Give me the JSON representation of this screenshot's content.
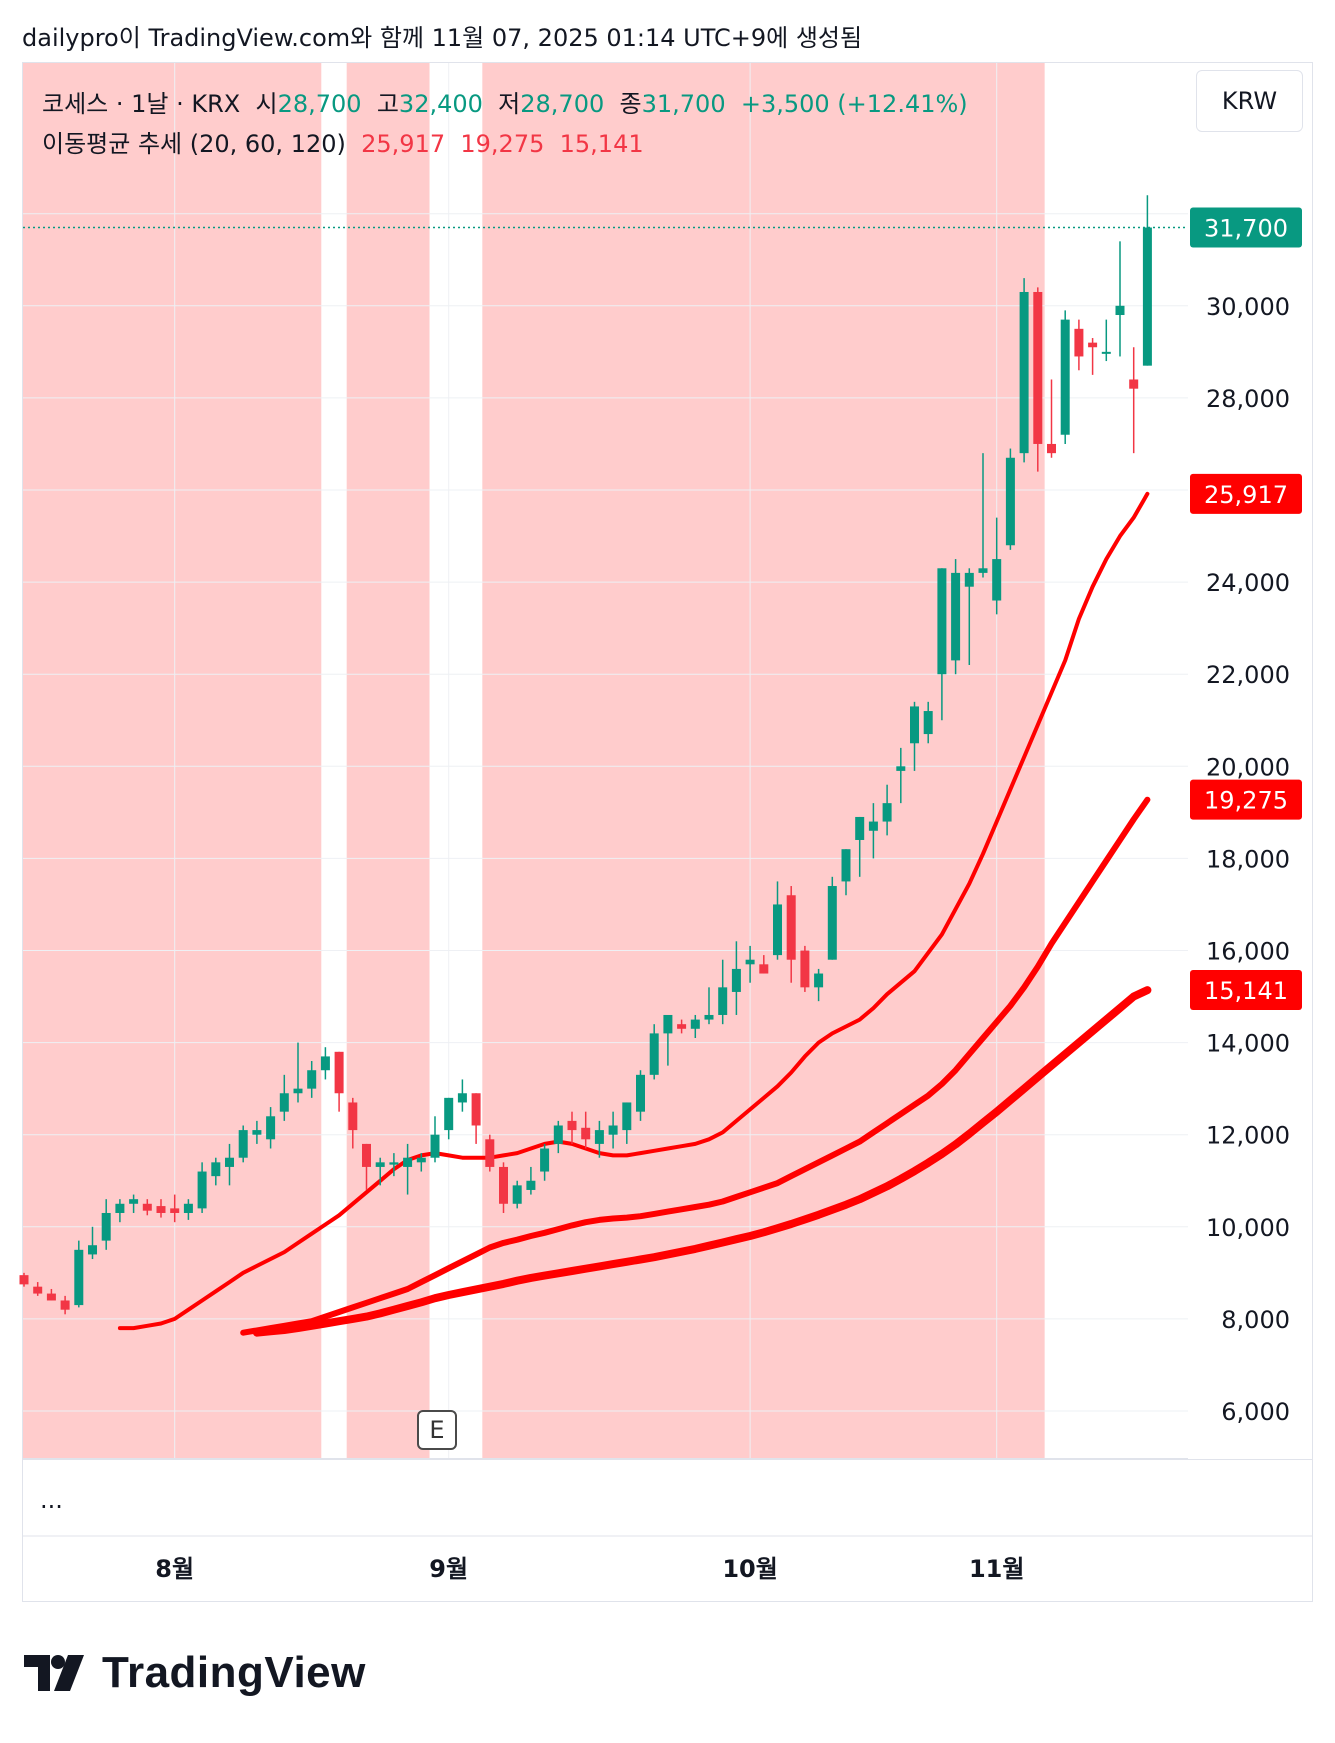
{
  "caption": "dailypro이 TradingView.com와 함께 11월 07, 2025 01:14 UTC+9에 생성됨",
  "legend": {
    "symbol": "코세스 · 1날 · KRX",
    "open_label": "시",
    "open": "28,700",
    "high_label": "고",
    "high": "32,400",
    "low_label": "저",
    "low": "28,700",
    "close_label": "종",
    "close": "31,700",
    "change": "+3,500 (+12.41%)",
    "indicator": "이동평균 추세 (20, 60, 120)",
    "ma20": "25,917",
    "ma60": "19,275",
    "ma120": "15,141"
  },
  "currency": "KRW",
  "ellipsis": "...",
  "earnings_marker": "E",
  "brand": "TradingView",
  "colors": {
    "up": "#089981",
    "down": "#f23645",
    "ma": "#ff0000",
    "bg_band": "#ffcccc",
    "grid": "#eef0f4"
  },
  "chart_data": {
    "type": "candlestick",
    "y_axis": {
      "min": 5000,
      "max": 35500,
      "ticks": [
        6000,
        8000,
        10000,
        12000,
        14000,
        16000,
        18000,
        20000,
        22000,
        24000,
        28000,
        30000
      ],
      "tick_labels": [
        "6,000",
        "8,000",
        "10,000",
        "12,000",
        "14,000",
        "16,000",
        "18,000",
        "20,000",
        "22,000",
        "24,000",
        "28,000",
        "30,000"
      ]
    },
    "x_axis": {
      "month_labels": [
        {
          "label": "8월",
          "index": 11
        },
        {
          "label": "9월",
          "index": 31
        },
        {
          "label": "10월",
          "index": 53
        },
        {
          "label": "11월",
          "index": 71
        }
      ]
    },
    "price_labels": [
      {
        "text": "31,700",
        "value": 31700,
        "color": "#089981"
      },
      {
        "text": "25,917",
        "value": 25917,
        "color": "#ff0000"
      },
      {
        "text": "19,275",
        "value": 19275,
        "color": "#ff0000"
      },
      {
        "text": "15,141",
        "value": 15141,
        "color": "#ff0000"
      }
    ],
    "last_close": 31700,
    "candles": [
      [
        8950,
        9000,
        8700,
        8750
      ],
      [
        8700,
        8800,
        8500,
        8550
      ],
      [
        8550,
        8650,
        8400,
        8400
      ],
      [
        8400,
        8500,
        8100,
        8200
      ],
      [
        8300,
        9700,
        8250,
        9500
      ],
      [
        9400,
        10000,
        9300,
        9600
      ],
      [
        9700,
        10600,
        9500,
        10300
      ],
      [
        10300,
        10600,
        10100,
        10500
      ],
      [
        10500,
        10700,
        10300,
        10600
      ],
      [
        10500,
        10600,
        10250,
        10350
      ],
      [
        10450,
        10600,
        10200,
        10300
      ],
      [
        10400,
        10700,
        10100,
        10300
      ],
      [
        10300,
        10600,
        10150,
        10500
      ],
      [
        10400,
        11400,
        10300,
        11200
      ],
      [
        11100,
        11500,
        10900,
        11400
      ],
      [
        11300,
        11800,
        10900,
        11500
      ],
      [
        11500,
        12200,
        11400,
        12100
      ],
      [
        12000,
        12300,
        11800,
        12100
      ],
      [
        11900,
        12600,
        11700,
        12400
      ],
      [
        12500,
        13300,
        12300,
        12900
      ],
      [
        12900,
        14000,
        12700,
        13000
      ],
      [
        13000,
        13600,
        12800,
        13400
      ],
      [
        13400,
        13900,
        13200,
        13700
      ],
      [
        13800,
        13800,
        12500,
        12900
      ],
      [
        12700,
        12800,
        11700,
        12100
      ],
      [
        11800,
        11800,
        10800,
        11300
      ],
      [
        11300,
        11500,
        10900,
        11400
      ],
      [
        11350,
        11600,
        11100,
        11400
      ],
      [
        11300,
        11800,
        10700,
        11500
      ],
      [
        11400,
        11600,
        11200,
        11500
      ],
      [
        11500,
        12400,
        11400,
        12000
      ],
      [
        12100,
        12800,
        11900,
        12800
      ],
      [
        12700,
        13200,
        12500,
        12900
      ],
      [
        12900,
        12900,
        11800,
        12200
      ],
      [
        11900,
        12000,
        11200,
        11300
      ],
      [
        11300,
        11400,
        10300,
        10500
      ],
      [
        10500,
        11000,
        10400,
        10900
      ],
      [
        10800,
        11300,
        10700,
        11000
      ],
      [
        11200,
        11800,
        11000,
        11700
      ],
      [
        11800,
        12300,
        11600,
        12200
      ],
      [
        12300,
        12500,
        11800,
        12100
      ],
      [
        12150,
        12500,
        11700,
        11900
      ],
      [
        11800,
        12300,
        11500,
        12100
      ],
      [
        12000,
        12500,
        11700,
        12200
      ],
      [
        12100,
        12700,
        11800,
        12700
      ],
      [
        12500,
        13400,
        12300,
        13300
      ],
      [
        13300,
        14400,
        13200,
        14200
      ],
      [
        14200,
        14500,
        13500,
        14600
      ],
      [
        14400,
        14500,
        14200,
        14300
      ],
      [
        14300,
        14600,
        14100,
        14500
      ],
      [
        14500,
        15200,
        14400,
        14600
      ],
      [
        14600,
        15800,
        14400,
        15200
      ],
      [
        15100,
        16200,
        14600,
        15600
      ],
      [
        15700,
        16100,
        15300,
        15800
      ],
      [
        15700,
        15900,
        15500,
        15500
      ],
      [
        15900,
        17500,
        15800,
        17000
      ],
      [
        17200,
        17400,
        15300,
        15800
      ],
      [
        16000,
        16100,
        15100,
        15200
      ],
      [
        15200,
        15600,
        14900,
        15500
      ],
      [
        15800,
        17600,
        15800,
        17400
      ],
      [
        17500,
        18200,
        17200,
        18200
      ],
      [
        18400,
        18900,
        17600,
        18900
      ],
      [
        18600,
        19200,
        18000,
        18800
      ],
      [
        18800,
        19600,
        18500,
        19200
      ],
      [
        19900,
        20400,
        19200,
        20000
      ],
      [
        20500,
        21400,
        19900,
        21300
      ],
      [
        20700,
        21400,
        20500,
        21200
      ],
      [
        22000,
        24300,
        21000,
        24300
      ],
      [
        22300,
        24500,
        22000,
        24200
      ],
      [
        23900,
        24300,
        22200,
        24200
      ],
      [
        24200,
        26800,
        24100,
        24300
      ],
      [
        23600,
        25400,
        23300,
        24500
      ],
      [
        24800,
        26900,
        24700,
        26700
      ],
      [
        26800,
        30600,
        26600,
        30300
      ],
      [
        30300,
        30400,
        26400,
        27000
      ],
      [
        27000,
        28400,
        26700,
        26800
      ],
      [
        27200,
        29900,
        27000,
        29700
      ],
      [
        29500,
        29700,
        28600,
        28900
      ],
      [
        29200,
        29300,
        28500,
        29100
      ],
      [
        29000,
        29700,
        28800,
        29000
      ],
      [
        29800,
        31400,
        28900,
        30000
      ],
      [
        28400,
        29100,
        26800,
        28200
      ],
      [
        28700,
        32400,
        28700,
        31700
      ]
    ],
    "moving_averages": [
      {
        "name": "20",
        "width": 4,
        "values": [
          7800,
          7800,
          7850,
          7900,
          8000,
          8200,
          8400,
          8600,
          8800,
          9000,
          9150,
          9300,
          9450,
          9650,
          9850,
          10050,
          10250,
          10500,
          10750,
          11000,
          11250,
          11450,
          11550,
          11600,
          11550,
          11500,
          11500,
          11500,
          11550,
          11600,
          11700,
          11800,
          11850,
          11800,
          11700,
          11600,
          11550,
          11550,
          11600,
          11650,
          11700,
          11750,
          11800,
          11900,
          12050,
          12300,
          12550,
          12800,
          13050,
          13350,
          13700,
          14000,
          14200,
          14350,
          14500,
          14750,
          15050,
          15300,
          15550,
          15950,
          16350,
          16900,
          17450,
          18100,
          18800,
          19500,
          20200,
          20900,
          21600,
          22300,
          23200,
          23900,
          24500,
          25000,
          25400,
          25917
        ]
      },
      {
        "name": "60",
        "width": 6,
        "values": [
          7700,
          7750,
          7800,
          7850,
          7900,
          7950,
          8050,
          8150,
          8250,
          8350,
          8450,
          8550,
          8650,
          8800,
          8950,
          9100,
          9250,
          9400,
          9550,
          9650,
          9720,
          9800,
          9870,
          9950,
          10030,
          10100,
          10150,
          10180,
          10200,
          10230,
          10280,
          10330,
          10380,
          10430,
          10480,
          10550,
          10650,
          10750,
          10850,
          10950,
          11100,
          11250,
          11400,
          11550,
          11700,
          11850,
          12050,
          12250,
          12450,
          12650,
          12850,
          13100,
          13400,
          13750,
          14100,
          14450,
          14800,
          15200,
          15650,
          16150,
          16600,
          17050,
          17500,
          17950,
          18400,
          18850,
          19275
        ]
      },
      {
        "name": "120",
        "width": 8,
        "values": [
          7700,
          7730,
          7760,
          7800,
          7850,
          7900,
          7950,
          8000,
          8050,
          8120,
          8200,
          8280,
          8360,
          8450,
          8520,
          8580,
          8640,
          8700,
          8760,
          8830,
          8890,
          8940,
          8990,
          9040,
          9090,
          9140,
          9190,
          9240,
          9290,
          9340,
          9400,
          9460,
          9520,
          9590,
          9660,
          9730,
          9800,
          9880,
          9970,
          10060,
          10160,
          10260,
          10370,
          10480,
          10600,
          10740,
          10880,
          11040,
          11210,
          11390,
          11580,
          11790,
          12020,
          12260,
          12500,
          12750,
          13000,
          13250,
          13500,
          13750,
          14000,
          14250,
          14500,
          14750,
          15000,
          15141
        ]
      }
    ],
    "highlight_bands": [
      [
        0,
        21.7
      ],
      [
        23.7,
        29.6
      ],
      [
        33.6,
        74.5
      ]
    ]
  }
}
